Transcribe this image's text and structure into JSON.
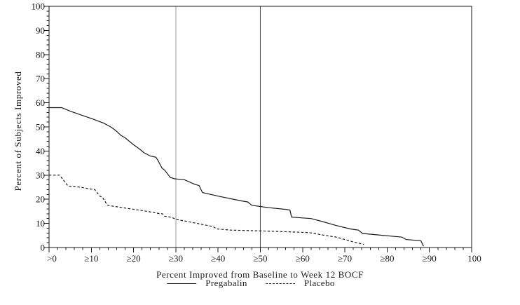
{
  "figure": {
    "background": "#ffffff",
    "frame_color": "#1a1a1a",
    "curve_color": "#1a1a1a"
  },
  "chart_data": {
    "type": "line",
    "title": "",
    "xlabel": "Percent Improved from Baseline to Week 12 BOCF",
    "ylabel": "Percent of Subjects Improved",
    "xlim": [
      0,
      100
    ],
    "ylim": [
      0,
      100
    ],
    "grid": "off",
    "legend_position": "bottom",
    "x_tick_labels": [
      ">0",
      "≥10",
      "≥20",
      "≥30",
      "≥40",
      "≥50",
      "≥60",
      "≥70",
      "≥80",
      "≥90",
      "100"
    ],
    "x_tick_values": [
      0,
      10,
      20,
      30,
      40,
      50,
      60,
      70,
      80,
      90,
      100
    ],
    "y_tick_labels": [
      "0",
      "10",
      "20",
      "30",
      "40",
      "50",
      "60",
      "70",
      "80",
      "90",
      "100"
    ],
    "y_tick_values": [
      0,
      10,
      20,
      30,
      40,
      50,
      60,
      70,
      80,
      90,
      100
    ],
    "minor_tick_step": 2,
    "reference_lines": [
      {
        "x": 30,
        "color": "#9c9c9c"
      },
      {
        "x": 50,
        "color": "#4a4a4a"
      }
    ],
    "legend": {
      "entries": [
        {
          "label": "Pregabalin",
          "style": "solid"
        },
        {
          "label": "Placebo",
          "style": "dashed"
        }
      ]
    },
    "series": [
      {
        "name": "Pregabalin",
        "style": "solid",
        "color": "#1a1a1a",
        "points": [
          [
            0,
            58
          ],
          [
            3,
            58
          ],
          [
            5,
            56.5
          ],
          [
            7.5,
            55
          ],
          [
            10,
            53.5
          ],
          [
            13,
            51.5
          ],
          [
            14.6,
            50
          ],
          [
            15.8,
            48.5
          ],
          [
            17,
            46.5
          ],
          [
            18,
            45.5
          ],
          [
            20,
            42.6
          ],
          [
            21.3,
            41
          ],
          [
            22.4,
            39.4
          ],
          [
            24,
            37.9
          ],
          [
            25.3,
            37.4
          ],
          [
            25.8,
            36
          ],
          [
            26.4,
            34
          ],
          [
            26.7,
            33
          ],
          [
            27.4,
            32
          ],
          [
            28,
            30.6
          ],
          [
            28.7,
            29
          ],
          [
            29.7,
            28.5
          ],
          [
            32,
            28.1
          ],
          [
            34.5,
            26.2
          ],
          [
            35.5,
            25.7
          ],
          [
            36.3,
            22.8
          ],
          [
            40,
            21.3
          ],
          [
            45.6,
            19.3
          ],
          [
            47,
            18.9
          ],
          [
            48,
            17.5
          ],
          [
            52,
            16.5
          ],
          [
            56,
            15.8
          ],
          [
            57,
            15.5
          ],
          [
            57.4,
            12.6
          ],
          [
            62,
            12
          ],
          [
            65,
            10.6
          ],
          [
            68,
            9.1
          ],
          [
            71.3,
            7.7
          ],
          [
            73.2,
            7.2
          ],
          [
            74.2,
            5.8
          ],
          [
            78,
            5.2
          ],
          [
            83.5,
            4.3
          ],
          [
            84.5,
            3.3
          ],
          [
            88,
            2.8
          ],
          [
            88.6,
            0.5
          ]
        ]
      },
      {
        "name": "Placebo",
        "style": "dashed",
        "color": "#1a1a1a",
        "points": [
          [
            0,
            30
          ],
          [
            2.5,
            30
          ],
          [
            4.5,
            25.5
          ],
          [
            7.5,
            25
          ],
          [
            10,
            24.2
          ],
          [
            10.8,
            24
          ],
          [
            12,
            21.3
          ],
          [
            12.6,
            20.9
          ],
          [
            13.8,
            17.6
          ],
          [
            14.5,
            17.3
          ],
          [
            16,
            16.9
          ],
          [
            19,
            16.1
          ],
          [
            22.5,
            15.2
          ],
          [
            26,
            14.1
          ],
          [
            26.8,
            14
          ],
          [
            27.3,
            13
          ],
          [
            29,
            12.5
          ],
          [
            30.2,
            11.6
          ],
          [
            34.8,
            10.1
          ],
          [
            38.7,
            8.7
          ],
          [
            39.8,
            7.7
          ],
          [
            43,
            7.2
          ],
          [
            50,
            6.9
          ],
          [
            55,
            6.6
          ],
          [
            61.5,
            6.2
          ],
          [
            64.7,
            5.2
          ],
          [
            68,
            4.3
          ],
          [
            70,
            3.3
          ],
          [
            72,
            2.3
          ],
          [
            74.5,
            1.3
          ]
        ]
      }
    ]
  }
}
